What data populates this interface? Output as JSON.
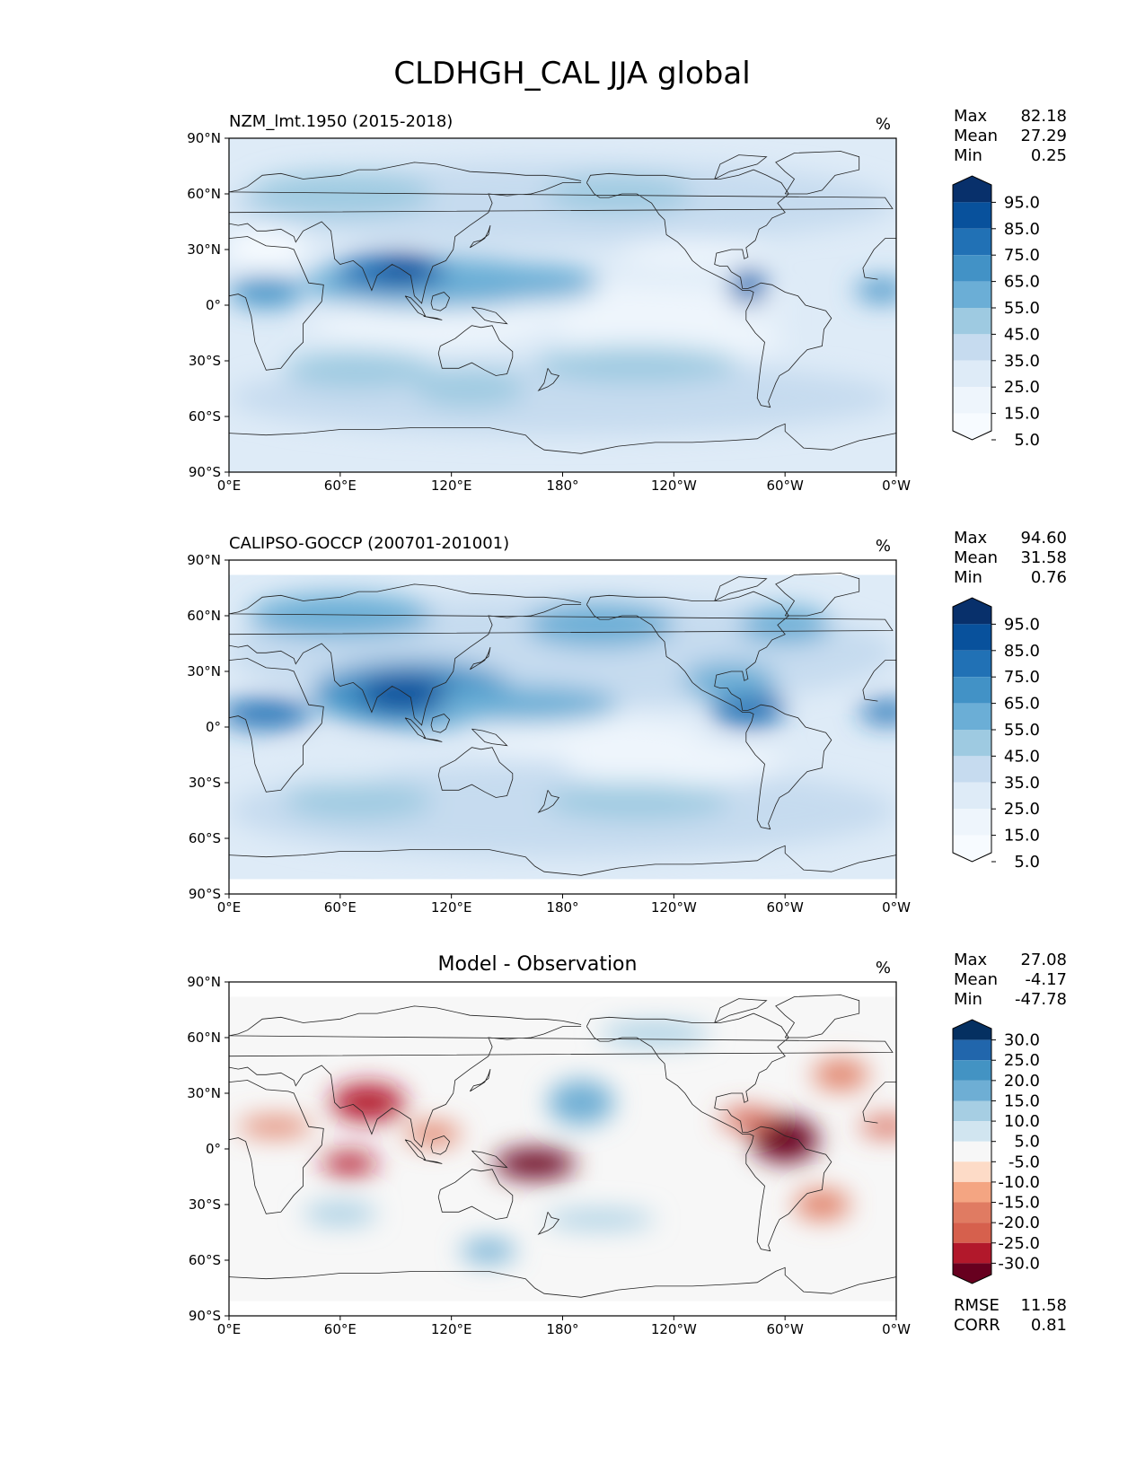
{
  "figure": {
    "title": "CLDHGH_CAL JJA global"
  },
  "panels": [
    {
      "title_left": "NZM_lmt.1950 (2015-2018)",
      "title_center": "",
      "units": "%",
      "stats": [
        {
          "label": "Max",
          "value": "82.18"
        },
        {
          "label": "Mean",
          "value": "27.29"
        },
        {
          "label": "Min",
          "value": "0.25"
        }
      ],
      "colorbar_labels": [
        "95.0",
        "85.0",
        "75.0",
        "65.0",
        "55.0",
        "45.0",
        "35.0",
        "25.0",
        "15.0",
        "5.0"
      ],
      "colorbar_colors": [
        "#08306b",
        "#08519c",
        "#2171b5",
        "#4292c6",
        "#6baed6",
        "#9ecae1",
        "#c6dbef",
        "#deebf7",
        "#eef5fc",
        "#f7fbff"
      ],
      "footer_stats": []
    },
    {
      "title_left": "CALIPSO-GOCCP (200701-201001)",
      "title_center": "",
      "units": "%",
      "stats": [
        {
          "label": "Max",
          "value": "94.60"
        },
        {
          "label": "Mean",
          "value": "31.58"
        },
        {
          "label": "Min",
          "value": "0.76"
        }
      ],
      "colorbar_labels": [
        "95.0",
        "85.0",
        "75.0",
        "65.0",
        "55.0",
        "45.0",
        "35.0",
        "25.0",
        "15.0",
        "5.0"
      ],
      "colorbar_colors": [
        "#08306b",
        "#08519c",
        "#2171b5",
        "#4292c6",
        "#6baed6",
        "#9ecae1",
        "#c6dbef",
        "#deebf7",
        "#eef5fc",
        "#f7fbff"
      ],
      "footer_stats": []
    },
    {
      "title_left": "",
      "title_center": "Model - Observation",
      "units": "%",
      "stats": [
        {
          "label": "Max",
          "value": "27.08"
        },
        {
          "label": "Mean",
          "value": "-4.17"
        },
        {
          "label": "Min",
          "value": "-47.78"
        }
      ],
      "colorbar_labels": [
        "30.0",
        "25.0",
        "20.0",
        "15.0",
        "10.0",
        "5.0",
        "-5.0",
        "-10.0",
        "-15.0",
        "-20.0",
        "-25.0",
        "-30.0"
      ],
      "colorbar_colors": [
        "#053061",
        "#2166ac",
        "#4393c3",
        "#6eaed4",
        "#a6cee3",
        "#d1e5f0",
        "#f7f7f7",
        "#fddbc7",
        "#f4a582",
        "#e07b62",
        "#d6604d",
        "#b2182b",
        "#67001f"
      ],
      "footer_stats": [
        {
          "label": "RMSE",
          "value": "11.58"
        },
        {
          "label": "CORR",
          "value": "0.81"
        }
      ]
    }
  ],
  "chart_data": {
    "type": "heatmap",
    "title": "CLDHGH_CAL JJA global",
    "x_ticks": [
      "0°E",
      "60°E",
      "120°E",
      "180°",
      "120°W",
      "60°W",
      "0°W"
    ],
    "y_ticks": [
      "90°N",
      "60°N",
      "30°N",
      "0°",
      "30°S",
      "60°S",
      "90°S"
    ],
    "xlim": [
      0,
      360
    ],
    "ylim": [
      -90,
      90
    ],
    "panels": [
      {
        "name": "NZM_lmt.1950 (2015-2018)",
        "max": 82.18,
        "mean": 27.29,
        "min": 0.25,
        "levels": [
          5,
          15,
          25,
          35,
          45,
          55,
          65,
          75,
          85,
          95
        ]
      },
      {
        "name": "CALIPSO-GOCCP (200701-201001)",
        "max": 94.6,
        "mean": 31.58,
        "min": 0.76,
        "levels": [
          5,
          15,
          25,
          35,
          45,
          55,
          65,
          75,
          85,
          95
        ]
      },
      {
        "name": "Model - Observation",
        "max": 27.08,
        "mean": -4.17,
        "min": -47.78,
        "rmse": 11.58,
        "corr": 0.81,
        "levels": [
          -30,
          -25,
          -20,
          -15,
          -10,
          -5,
          5,
          10,
          15,
          20,
          25,
          30
        ]
      }
    ]
  }
}
